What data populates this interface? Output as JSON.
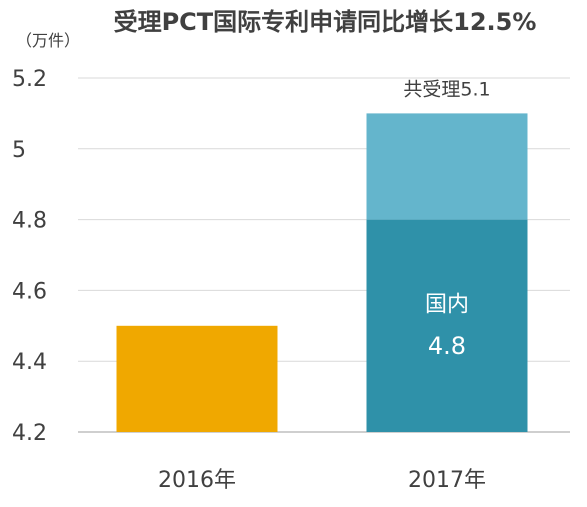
{
  "chart_data": {
    "type": "bar",
    "title": "受理PCT国际专利申请同比增长12.5%",
    "ylabel": "（万件）",
    "xlabel": "",
    "ylim": [
      4.2,
      5.2
    ],
    "yticks": [
      5.2,
      5,
      4.8,
      4.6,
      4.4,
      4.2
    ],
    "grid": true,
    "categories": [
      "2016年",
      "2017年"
    ],
    "bars": [
      {
        "category": "2016年",
        "segments": [
          {
            "value": 4.5,
            "color": "#F0A800"
          }
        ]
      },
      {
        "category": "2017年",
        "segments": [
          {
            "value": 4.8,
            "color": "#2F91A9"
          },
          {
            "value": 5.1,
            "color": "#64B5CC"
          }
        ]
      }
    ],
    "annotations": [
      {
        "category": "2017年",
        "text": "共受理5.1",
        "position": "above-bar"
      },
      {
        "category": "2017年",
        "text": "国内",
        "position": "inside-lower-segment"
      },
      {
        "category": "2017年",
        "text": "4.8",
        "position": "inside-lower-segment"
      }
    ],
    "colors": {
      "text": "#404040",
      "grid": "#D9D9D9",
      "axis": "#BFBFBF",
      "annotation_inside": "#FFFFFF"
    }
  }
}
